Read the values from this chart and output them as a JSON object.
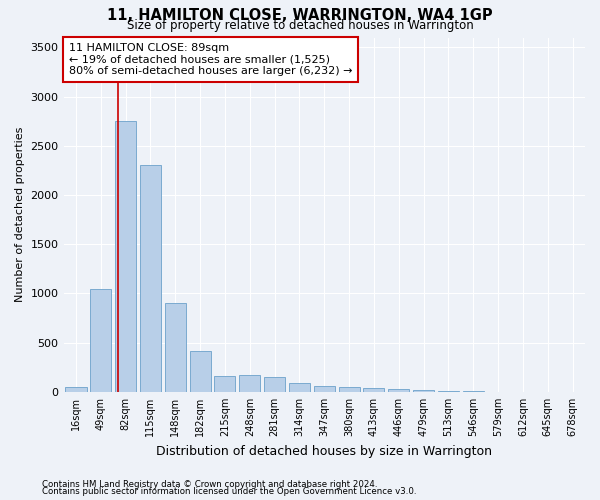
{
  "title": "11, HAMILTON CLOSE, WARRINGTON, WA4 1GP",
  "subtitle": "Size of property relative to detached houses in Warrington",
  "xlabel": "Distribution of detached houses by size in Warrington",
  "ylabel": "Number of detached properties",
  "categories": [
    "16sqm",
    "49sqm",
    "82sqm",
    "115sqm",
    "148sqm",
    "182sqm",
    "215sqm",
    "248sqm",
    "281sqm",
    "314sqm",
    "347sqm",
    "380sqm",
    "413sqm",
    "446sqm",
    "479sqm",
    "513sqm",
    "546sqm",
    "579sqm",
    "612sqm",
    "645sqm",
    "678sqm"
  ],
  "values": [
    50,
    1050,
    2750,
    2300,
    900,
    420,
    160,
    170,
    155,
    90,
    60,
    50,
    35,
    30,
    15,
    10,
    7,
    4,
    3,
    2,
    1
  ],
  "bar_color": "#b8cfe8",
  "bar_edge_color": "#7aaad0",
  "background_color": "#eef2f8",
  "grid_color": "#ffffff",
  "annotation_text": "11 HAMILTON CLOSE: 89sqm\n← 19% of detached houses are smaller (1,525)\n80% of semi-detached houses are larger (6,232) →",
  "annotation_box_color": "#ffffff",
  "annotation_box_edge_color": "#cc0000",
  "footer1": "Contains HM Land Registry data © Crown copyright and database right 2024.",
  "footer2": "Contains public sector information licensed under the Open Government Licence v3.0.",
  "ylim": [
    0,
    3600
  ],
  "yticks": [
    0,
    500,
    1000,
    1500,
    2000,
    2500,
    3000,
    3500
  ]
}
